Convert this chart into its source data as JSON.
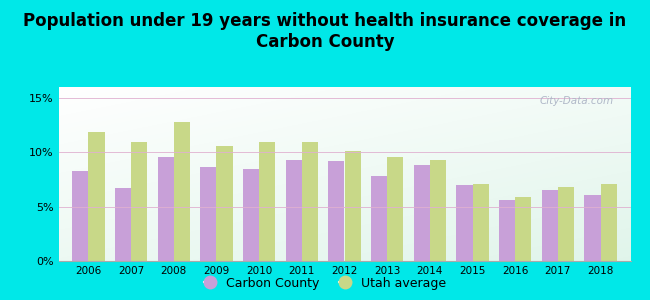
{
  "title": "Population under 19 years without health insurance coverage in\nCarbon County",
  "years": [
    2006,
    2007,
    2008,
    2009,
    2010,
    2011,
    2012,
    2013,
    2014,
    2015,
    2016,
    2017,
    2018
  ],
  "carbon_county": [
    8.3,
    6.7,
    9.6,
    8.6,
    8.5,
    9.3,
    9.2,
    7.8,
    8.8,
    7.0,
    5.6,
    6.5,
    6.1
  ],
  "utah_average": [
    11.9,
    10.9,
    12.8,
    10.6,
    10.9,
    10.9,
    10.1,
    9.6,
    9.3,
    7.1,
    5.9,
    6.8,
    7.1
  ],
  "carbon_color": "#c8a0d8",
  "utah_color": "#c8d888",
  "background_outer": "#00e8e8",
  "ylim": [
    0,
    16
  ],
  "yticks": [
    0,
    5,
    10,
    15
  ],
  "ytick_labels": [
    "0%",
    "5%",
    "10%",
    "15%"
  ],
  "title_fontsize": 12,
  "watermark": "City-Data.com"
}
